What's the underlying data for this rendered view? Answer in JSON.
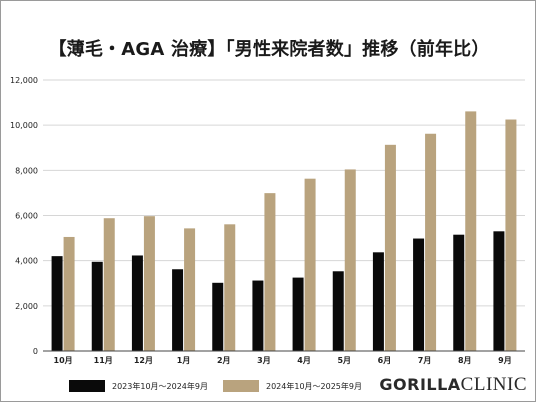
{
  "title": "【薄毛・AGA 治療】「男性来院者数」推移（前年比）",
  "colors": {
    "series_prev": "#0a0a0a",
    "series_curr": "#b9a37e",
    "grid": "#d6d6d6",
    "axis": "#444444"
  },
  "legend": {
    "prev": "2023年10月～2024年9月",
    "curr": "2024年10月～2025年9月"
  },
  "logo": {
    "bold": "GORILLA",
    "light": "CLINIC"
  },
  "chart_data": {
    "type": "bar",
    "categories": [
      "10月",
      "11月",
      "12月",
      "1月",
      "2月",
      "3月",
      "4月",
      "5月",
      "6月",
      "7月",
      "8月",
      "9月"
    ],
    "series": [
      {
        "name": "2023年10月～2024年9月",
        "values": [
          4200,
          3950,
          4230,
          3620,
          3020,
          3120,
          3250,
          3530,
          4370,
          4980,
          5150,
          5300
        ]
      },
      {
        "name": "2024年10月～2025年9月",
        "values": [
          5050,
          5880,
          5970,
          5430,
          5610,
          6990,
          7630,
          8040,
          9130,
          9620,
          10610,
          10250
        ]
      }
    ],
    "yticks": [
      "0",
      "2,000",
      "4,000",
      "6,000",
      "8,000",
      "10,000",
      "12,000"
    ],
    "ylim": [
      0,
      12000
    ],
    "grid": true,
    "legend_position": "bottom"
  }
}
